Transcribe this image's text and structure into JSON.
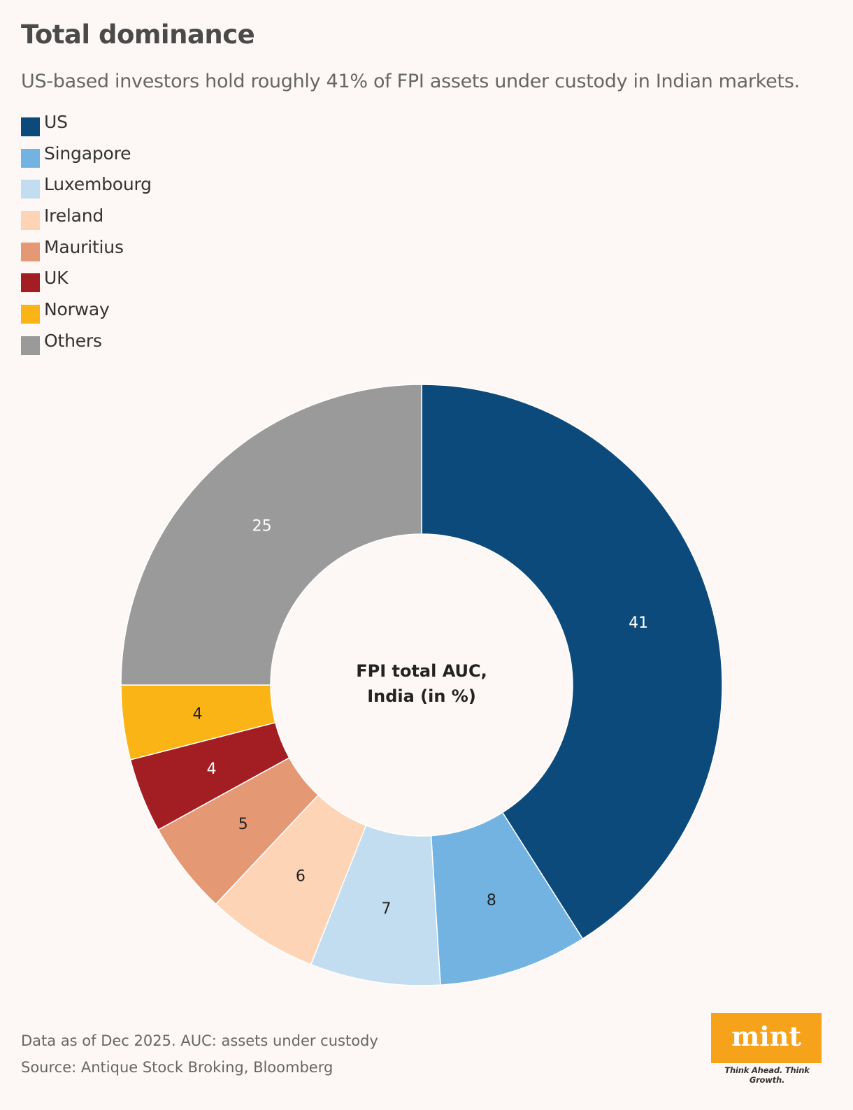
{
  "header": {
    "title": "Total dominance",
    "subtitle": "US-based investors hold roughly 41% of FPI assets under custody in Indian markets."
  },
  "legend": [
    {
      "label": "US",
      "color": "#0c4a7b"
    },
    {
      "label": "Singapore",
      "color": "#73b3e2"
    },
    {
      "label": "Luxembourg",
      "color": "#c2ddef"
    },
    {
      "label": "Ireland",
      "color": "#fdd5b6"
    },
    {
      "label": "Mauritius",
      "color": "#e59874"
    },
    {
      "label": "UK",
      "color": "#a31e23"
    },
    {
      "label": "Norway",
      "color": "#fbb415"
    },
    {
      "label": "Others",
      "color": "#9a9a9a"
    }
  ],
  "chart_data": {
    "type": "pie",
    "donut": true,
    "center_label_lines": [
      "FPI total AUC,",
      "India (in %)"
    ],
    "categories": [
      "US",
      "Singapore",
      "Luxembourg",
      "Ireland",
      "Mauritius",
      "UK",
      "Norway",
      "Others"
    ],
    "values": [
      41,
      8,
      7,
      6,
      5,
      4,
      4,
      25
    ],
    "data_labels": [
      "41",
      "8",
      "7",
      "6",
      "5",
      "4",
      "4",
      "25"
    ],
    "colors": [
      "#0c4a7b",
      "#73b3e2",
      "#c2ddef",
      "#fdd5b6",
      "#e59874",
      "#a31e23",
      "#fbb415",
      "#9a9a9a"
    ],
    "label_colors": [
      "#ffffff",
      "#222222",
      "#222222",
      "#222222",
      "#222222",
      "#ffffff",
      "#222222",
      "#ffffff"
    ],
    "legend_position": "top-left"
  },
  "footer": {
    "note": "Data as of Dec 2025. AUC: assets under custody",
    "source": "Source: Antique Stock Broking, Bloomberg"
  },
  "logo": {
    "text": "mint",
    "tagline": "Think Ahead. Think Growth."
  }
}
